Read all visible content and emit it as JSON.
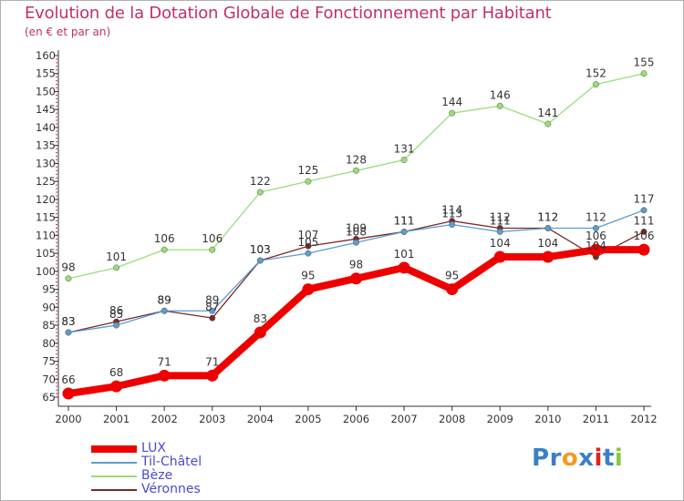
{
  "header": {
    "title": "Evolution de la Dotation Globale de Fonctionnement par Habitant",
    "subtitle": "(en € et par an)"
  },
  "logo": {
    "letters": [
      "P",
      "r",
      "o",
      "x",
      "i",
      "t",
      "i"
    ],
    "colors": [
      "#3a7fc8",
      "#3a7fc8",
      "#f39a1d",
      "#3a7fc8",
      "#e2231a",
      "#3a7fc8",
      "#8cc63e"
    ]
  },
  "chart_data": {
    "type": "line",
    "title": "Evolution de la Dotation Globale de Fonctionnement par Habitant",
    "subtitle": "(en € et par an)",
    "xlabel": "",
    "ylabel": "",
    "ylim": [
      65,
      160
    ],
    "yticks": [
      65,
      70,
      75,
      80,
      85,
      90,
      95,
      100,
      105,
      110,
      115,
      120,
      125,
      130,
      135,
      140,
      145,
      150,
      155,
      160
    ],
    "categories": [
      "2000",
      "2001",
      "2002",
      "2003",
      "2004",
      "2005",
      "2006",
      "2007",
      "2008",
      "2009",
      "2010",
      "2011",
      "2012"
    ],
    "grid": false,
    "legend": "bottom-left",
    "series": [
      {
        "name": "Bèze",
        "color": "#99dd77",
        "values": [
          98,
          101,
          106,
          106,
          122,
          125,
          128,
          131,
          144,
          146,
          141,
          152,
          155
        ]
      },
      {
        "name": "Véronnes",
        "color": "#7a2a2a",
        "values": [
          83,
          86,
          89,
          87,
          103,
          107,
          109,
          111,
          114,
          112,
          112,
          104,
          111
        ]
      },
      {
        "name": "Til-Châtel",
        "color": "#5c9ccf",
        "values": [
          83,
          85,
          89,
          89,
          103,
          105,
          108,
          111,
          113,
          111,
          112,
          112,
          117
        ]
      },
      {
        "name": "LUX",
        "color": "#ee0000",
        "values": [
          66,
          68,
          71,
          71,
          83,
          95,
          98,
          101,
          95,
          104,
          104,
          106,
          106
        ]
      }
    ]
  },
  "legend": {
    "items": [
      {
        "label": "LUX",
        "color": "#ee0000"
      },
      {
        "label": "Til-Châtel",
        "color": "#5c9ccf"
      },
      {
        "label": "Bèze",
        "color": "#99dd77"
      },
      {
        "label": "Véronnes",
        "color": "#7a2a2a"
      }
    ]
  }
}
